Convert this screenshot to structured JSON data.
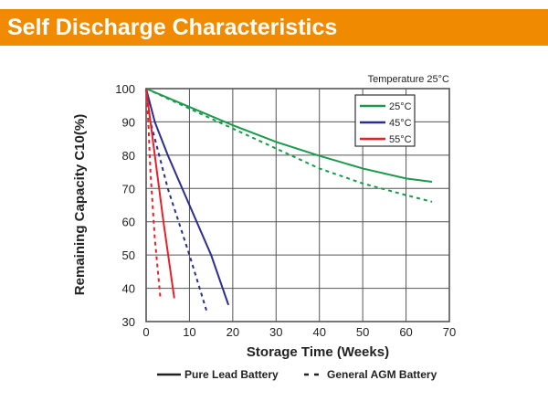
{
  "header": {
    "title": "Self Discharge Characteristics"
  },
  "chart_data": {
    "type": "line",
    "title": "",
    "annotation": "Temperature 25°C",
    "xlabel": "Storage Time (Weeks)",
    "ylabel": "Remaining Capacity C10(%)",
    "xlim": [
      0,
      70
    ],
    "ylim": [
      30,
      100
    ],
    "xticks": [
      0,
      10,
      20,
      30,
      40,
      50,
      60,
      70
    ],
    "yticks": [
      30,
      40,
      50,
      60,
      70,
      80,
      90,
      100
    ],
    "grid": true,
    "legend": {
      "placement": "top-right",
      "entries": [
        {
          "label": "25°C",
          "color": "#1a9a4a"
        },
        {
          "label": "45°C",
          "color": "#2a2e8e"
        },
        {
          "label": "55°C",
          "color": "#e8202a"
        }
      ]
    },
    "style_legend": [
      {
        "label": "Pure Lead Battery",
        "dash": "solid"
      },
      {
        "label": "General AGM Battery",
        "dash": "dashed"
      }
    ],
    "series": [
      {
        "temp": "25°C",
        "type": "Pure Lead Battery",
        "color": "#1a9a4a",
        "dashed": false,
        "points": [
          [
            0,
            100
          ],
          [
            10,
            94.5
          ],
          [
            20,
            89
          ],
          [
            30,
            84
          ],
          [
            40,
            79.8
          ],
          [
            50,
            76
          ],
          [
            60,
            73
          ],
          [
            66,
            72
          ]
        ]
      },
      {
        "temp": "25°C",
        "type": "General AGM Battery",
        "color": "#1a9a4a",
        "dashed": true,
        "points": [
          [
            0,
            100
          ],
          [
            10,
            94
          ],
          [
            20,
            88
          ],
          [
            30,
            82
          ],
          [
            40,
            76
          ],
          [
            50,
            71.5
          ],
          [
            60,
            68
          ],
          [
            66,
            66
          ]
        ]
      },
      {
        "temp": "45°C",
        "type": "Pure Lead Battery",
        "color": "#2a2e8e",
        "dashed": false,
        "points": [
          [
            0,
            100
          ],
          [
            2,
            90
          ],
          [
            5,
            80
          ],
          [
            10,
            65
          ],
          [
            15,
            50
          ],
          [
            19,
            35
          ]
        ]
      },
      {
        "temp": "45°C",
        "type": "General AGM Battery",
        "color": "#2a2e8e",
        "dashed": true,
        "points": [
          [
            0,
            100
          ],
          [
            1,
            90
          ],
          [
            5,
            70
          ],
          [
            10,
            50
          ],
          [
            14,
            33
          ]
        ]
      },
      {
        "temp": "55°C",
        "type": "Pure Lead Battery",
        "color": "#e8202a",
        "dashed": false,
        "points": [
          [
            0,
            100
          ],
          [
            1,
            90
          ],
          [
            2,
            80
          ],
          [
            4,
            60
          ],
          [
            6.5,
            37
          ]
        ]
      },
      {
        "temp": "55°C",
        "type": "General AGM Battery",
        "color": "#e8202a",
        "dashed": true,
        "points": [
          [
            0,
            100
          ],
          [
            0.5,
            90
          ],
          [
            1,
            75
          ],
          [
            2,
            55
          ],
          [
            3.3,
            37
          ]
        ]
      }
    ]
  }
}
